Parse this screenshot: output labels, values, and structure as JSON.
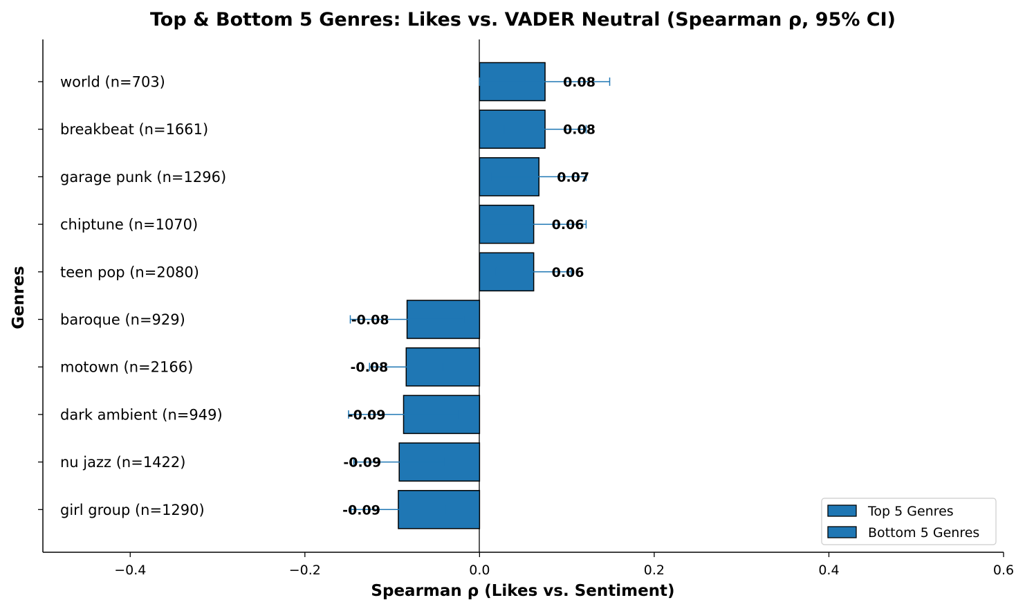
{
  "chart_data": {
    "type": "bar",
    "orientation": "horizontal",
    "title": "Top & Bottom 5 Genres: Likes vs. VADER Neutral (Spearman ρ, 95% CI)",
    "xlabel": "Spearman ρ (Likes vs. Sentiment)",
    "ylabel": "Genres",
    "xlim": [
      -0.5,
      0.6
    ],
    "xticks": [
      -0.4,
      -0.2,
      0.0,
      0.2,
      0.4,
      0.6
    ],
    "xtick_labels": [
      "−0.4",
      "−0.2",
      "0.0",
      "0.2",
      "0.4",
      "0.6"
    ],
    "bar_color": "#1f77b4",
    "errorbar_color": "#1f77b4",
    "legend": {
      "placement": "lower-right",
      "entries": [
        "Top 5 Genres",
        "Bottom 5 Genres"
      ]
    },
    "categories": [
      {
        "label": "world (n=703)",
        "value": 0.075,
        "ci": [
          0.0,
          0.149
        ],
        "value_label": "0.08",
        "group": "Top 5 Genres"
      },
      {
        "label": "breakbeat (n=1661)",
        "value": 0.075,
        "ci": [
          0.028,
          0.122
        ],
        "value_label": "0.08",
        "group": "Top 5 Genres"
      },
      {
        "label": "garage punk (n=1296)",
        "value": 0.068,
        "ci": [
          0.014,
          0.122
        ],
        "value_label": "0.07",
        "group": "Top 5 Genres"
      },
      {
        "label": "chiptune (n=1070)",
        "value": 0.062,
        "ci": [
          0.002,
          0.122
        ],
        "value_label": "0.06",
        "group": "Top 5 Genres"
      },
      {
        "label": "teen pop (n=2080)",
        "value": 0.062,
        "ci": [
          0.019,
          0.105
        ],
        "value_label": "0.06",
        "group": "Top 5 Genres"
      },
      {
        "label": "baroque (n=929)",
        "value": -0.083,
        "ci": [
          -0.148,
          -0.018
        ],
        "value_label": "-0.08",
        "group": "Bottom 5 Genres"
      },
      {
        "label": "motown (n=2166)",
        "value": -0.084,
        "ci": [
          -0.126,
          -0.042
        ],
        "value_label": "-0.08",
        "group": "Bottom 5 Genres"
      },
      {
        "label": "dark ambient (n=949)",
        "value": -0.087,
        "ci": [
          -0.15,
          -0.024
        ],
        "value_label": "-0.09",
        "group": "Bottom 5 Genres"
      },
      {
        "label": "nu jazz (n=1422)",
        "value": -0.092,
        "ci": [
          -0.144,
          -0.04
        ],
        "value_label": "-0.09",
        "group": "Bottom 5 Genres"
      },
      {
        "label": "girl group (n=1290)",
        "value": -0.093,
        "ci": [
          -0.147,
          -0.039
        ],
        "value_label": "-0.09",
        "group": "Bottom 5 Genres"
      }
    ]
  }
}
